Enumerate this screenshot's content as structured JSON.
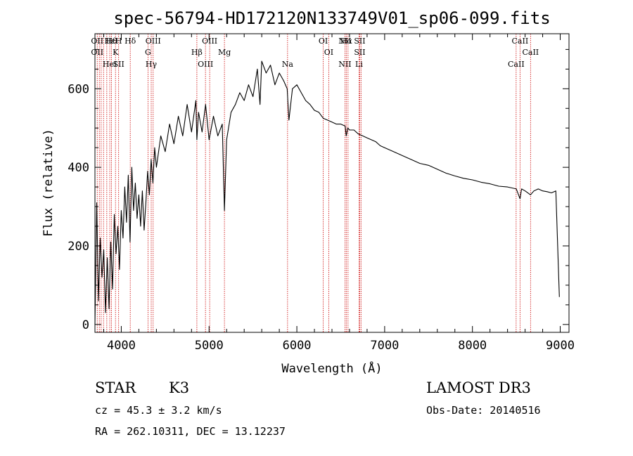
{
  "chart_data": {
    "type": "line",
    "title": "spec-56794-HD172120N133749V01_sp06-099.fits",
    "xlabel": "Wavelength (Å)",
    "ylabel": "Flux (relative)",
    "xlim": [
      3700,
      9100
    ],
    "ylim": [
      -20,
      740
    ],
    "xticks": [
      4000,
      5000,
      6000,
      7000,
      8000,
      9000
    ],
    "yticks": [
      0,
      200,
      400,
      600
    ],
    "series": [
      {
        "name": "flux",
        "x": [
          3700,
          3720,
          3740,
          3760,
          3780,
          3800,
          3820,
          3840,
          3860,
          3880,
          3900,
          3920,
          3940,
          3960,
          3980,
          4000,
          4020,
          4040,
          4060,
          4080,
          4100,
          4120,
          4140,
          4160,
          4180,
          4200,
          4220,
          4240,
          4260,
          4280,
          4300,
          4320,
          4340,
          4360,
          4380,
          4400,
          4450,
          4500,
          4550,
          4600,
          4650,
          4700,
          4750,
          4800,
          4850,
          4861,
          4880,
          4920,
          4960,
          5000,
          5050,
          5100,
          5150,
          5175,
          5200,
          5250,
          5300,
          5350,
          5400,
          5450,
          5500,
          5550,
          5580,
          5600,
          5650,
          5700,
          5750,
          5800,
          5850,
          5890,
          5910,
          5950,
          6000,
          6050,
          6100,
          6150,
          6200,
          6250,
          6300,
          6350,
          6400,
          6450,
          6500,
          6550,
          6563,
          6580,
          6600,
          6650,
          6700,
          6750,
          6800,
          6850,
          6900,
          6950,
          7000,
          7100,
          7200,
          7300,
          7400,
          7500,
          7600,
          7700,
          7800,
          7900,
          8000,
          8100,
          8200,
          8300,
          8400,
          8500,
          8542,
          8560,
          8600,
          8662,
          8700,
          8750,
          8800,
          8850,
          8900,
          8950,
          8990
        ],
        "values": [
          0,
          310,
          60,
          220,
          120,
          190,
          30,
          170,
          40,
          210,
          90,
          280,
          180,
          250,
          140,
          290,
          220,
          350,
          260,
          380,
          210,
          400,
          290,
          360,
          270,
          330,
          250,
          340,
          240,
          310,
          390,
          330,
          420,
          360,
          450,
          400,
          480,
          440,
          510,
          460,
          530,
          480,
          560,
          490,
          570,
          470,
          540,
          490,
          560,
          470,
          530,
          480,
          510,
          290,
          470,
          540,
          560,
          590,
          570,
          610,
          580,
          650,
          560,
          670,
          640,
          660,
          610,
          640,
          620,
          600,
          520,
          600,
          610,
          590,
          570,
          560,
          545,
          540,
          525,
          520,
          515,
          510,
          510,
          505,
          480,
          500,
          495,
          495,
          485,
          480,
          475,
          470,
          465,
          455,
          450,
          440,
          430,
          420,
          410,
          405,
          395,
          385,
          378,
          372,
          368,
          362,
          358,
          352,
          350,
          345,
          320,
          345,
          340,
          330,
          340,
          345,
          340,
          338,
          335,
          340,
          70
        ]
      }
    ],
    "spectral_lines": [
      {
        "wavelength": 3726,
        "labels": [
          "OII",
          "OII"
        ]
      },
      {
        "wavelength": 3750,
        "labels": []
      },
      {
        "wavelength": 3771,
        "labels": []
      },
      {
        "wavelength": 3798,
        "labels": []
      },
      {
        "wavelength": 3835,
        "labels": []
      },
      {
        "wavelength": 3869,
        "labels": [
          "HeI",
          "Hε"
        ]
      },
      {
        "wavelength": 3889,
        "labels": [
          "Hθ"
        ]
      },
      {
        "wavelength": 3934,
        "labels": [
          "K"
        ]
      },
      {
        "wavelength": 3970,
        "labels": [
          "SII",
          "H"
        ]
      },
      {
        "wavelength": 4102,
        "labels": [
          "Hδ"
        ]
      },
      {
        "wavelength": 4304,
        "labels": [
          "G"
        ]
      },
      {
        "wavelength": 4341,
        "labels": [
          "Hγ"
        ]
      },
      {
        "wavelength": 4363,
        "labels": [
          "OIII"
        ]
      },
      {
        "wavelength": 4861,
        "labels": [
          "Hβ"
        ]
      },
      {
        "wavelength": 4959,
        "labels": [
          "OIII"
        ]
      },
      {
        "wavelength": 5007,
        "labels": [
          "OIII"
        ]
      },
      {
        "wavelength": 5175,
        "labels": [
          "Mg"
        ]
      },
      {
        "wavelength": 5894,
        "labels": [
          "Na"
        ]
      },
      {
        "wavelength": 6300,
        "labels": [
          "OI"
        ]
      },
      {
        "wavelength": 6363,
        "labels": [
          "OI"
        ]
      },
      {
        "wavelength": 6548,
        "labels": [
          "NII",
          "NII"
        ]
      },
      {
        "wavelength": 6563,
        "labels": [
          "Hα"
        ]
      },
      {
        "wavelength": 6583,
        "labels": []
      },
      {
        "wavelength": 6708,
        "labels": [
          "Li"
        ]
      },
      {
        "wavelength": 6716,
        "labels": [
          "SII",
          "SII"
        ]
      },
      {
        "wavelength": 6731,
        "labels": []
      },
      {
        "wavelength": 8498,
        "labels": [
          "CaII"
        ]
      },
      {
        "wavelength": 8542,
        "labels": [
          "CaII"
        ]
      },
      {
        "wavelength": 8662,
        "labels": [
          "CaII"
        ]
      }
    ]
  },
  "info": {
    "object_class": "STAR",
    "subclass": "K3",
    "survey": "LAMOST DR3",
    "cz": "cz = 45.3 ± 3.2 km/s",
    "obs_date": "Obs-Date: 20140516",
    "coords": "RA = 262.10311, DEC =  13.12237"
  },
  "colors": {
    "line_markers": "#cc0000",
    "spectrum": "#000000",
    "axes": "#000000"
  }
}
